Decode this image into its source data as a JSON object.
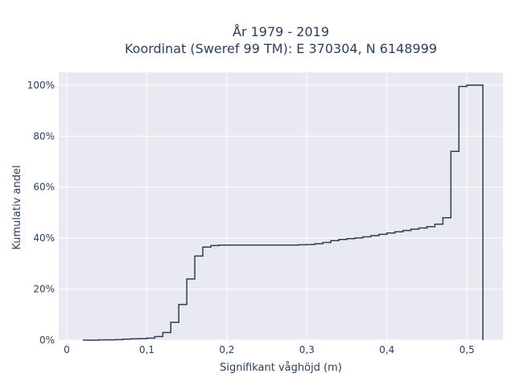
{
  "chart_data": {
    "type": "line",
    "line_shape": "step",
    "title": "År 1979 - 2019",
    "subtitle": "Koordinat (Sweref 99 TM): E 370304, N 6148999",
    "xlabel": "Signifikant våghöjd (m)",
    "ylabel": "Kumulativ andel",
    "xlim": [
      -0.01,
      0.545
    ],
    "ylim": [
      0,
      1.05
    ],
    "x_ticks": [
      0,
      0.1,
      0.2,
      0.3,
      0.4,
      0.5
    ],
    "x_tick_labels": [
      "0",
      "0,1",
      "0,2",
      "0,3",
      "0,4",
      "0,5"
    ],
    "y_ticks": [
      0,
      0.2,
      0.4,
      0.6,
      0.8,
      1.0
    ],
    "y_tick_labels": [
      "0%",
      "20%",
      "40%",
      "60%",
      "80%",
      "100%"
    ],
    "grid": true,
    "background_color": "#e9e9f2",
    "line_color": "#2f3e4e",
    "series": [
      {
        "x": [
          0.02,
          0.03,
          0.04,
          0.05,
          0.06,
          0.07,
          0.08,
          0.09,
          0.1,
          0.11,
          0.12,
          0.13,
          0.14,
          0.15,
          0.16,
          0.17,
          0.18,
          0.19,
          0.2,
          0.21,
          0.22,
          0.23,
          0.24,
          0.25,
          0.26,
          0.27,
          0.28,
          0.29,
          0.3,
          0.31,
          0.32,
          0.33,
          0.34,
          0.35,
          0.36,
          0.37,
          0.38,
          0.39,
          0.4,
          0.41,
          0.42,
          0.43,
          0.44,
          0.45,
          0.46,
          0.47,
          0.48,
          0.49,
          0.5,
          0.52
        ],
        "y": [
          0.0,
          0.0,
          0.001,
          0.001,
          0.002,
          0.004,
          0.005,
          0.006,
          0.008,
          0.014,
          0.03,
          0.07,
          0.14,
          0.24,
          0.33,
          0.365,
          0.371,
          0.373,
          0.373,
          0.373,
          0.373,
          0.373,
          0.373,
          0.373,
          0.373,
          0.373,
          0.373,
          0.374,
          0.375,
          0.378,
          0.383,
          0.39,
          0.395,
          0.398,
          0.401,
          0.405,
          0.41,
          0.415,
          0.42,
          0.425,
          0.43,
          0.435,
          0.44,
          0.445,
          0.455,
          0.48,
          0.74,
          0.995,
          1.0,
          0.0
        ]
      }
    ]
  }
}
